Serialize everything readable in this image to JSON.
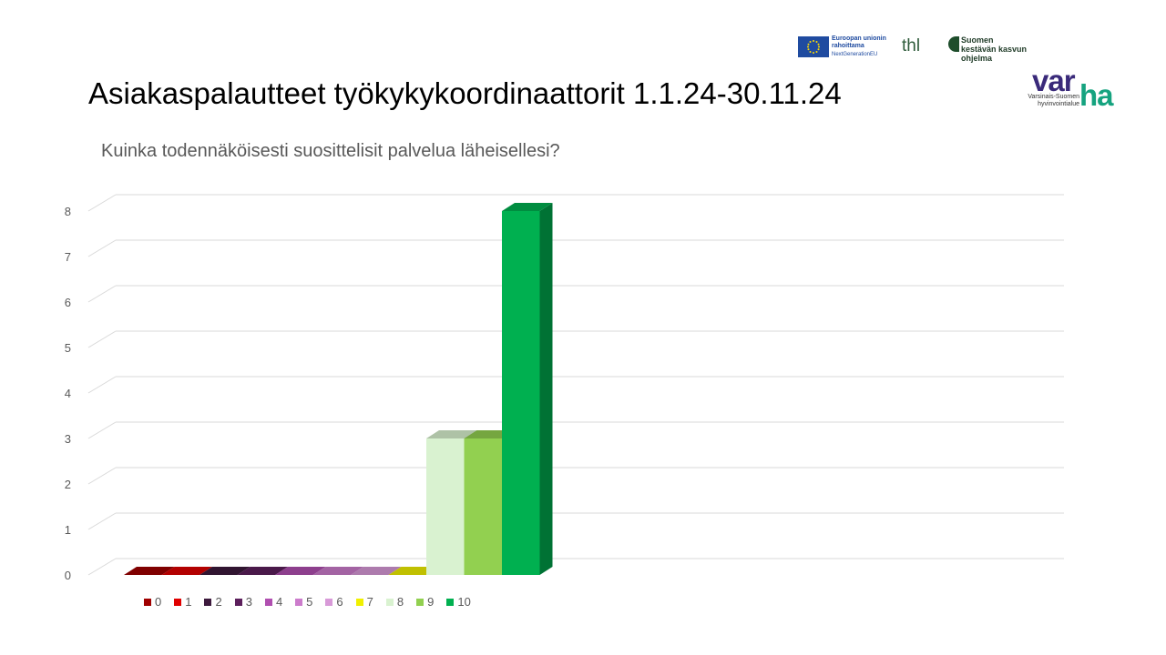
{
  "slide": {
    "title": "Asiakaspalautteet työkykykoordinaattorit 1.1.24-30.11.24"
  },
  "logos": {
    "eu_line1": "Euroopan unionin",
    "eu_line2": "rahoittama",
    "eu_line3": "NextGenerationEU",
    "thl": "thl",
    "skk_line1": "Suomen",
    "skk_line2": "kestävän kasvun",
    "skk_line3": "ohjelma",
    "varha_a": "var",
    "varha_b": "ha",
    "varha_sub1": "Varsinais-Suomen",
    "varha_sub2": "hyvinvointialue"
  },
  "chart_data": {
    "type": "bar",
    "title": "Kuinka todennäköisesti suosittelisit palvelua läheisellesi?",
    "categories": [
      "0",
      "1",
      "2",
      "3",
      "4",
      "5",
      "6",
      "7",
      "8",
      "9",
      "10"
    ],
    "values": [
      0,
      0,
      0,
      0,
      0,
      0,
      0,
      0,
      3,
      3,
      8
    ],
    "colors": [
      "#a00000",
      "#e00000",
      "#3d1a3d",
      "#5c1f5c",
      "#b04fb0",
      "#cc7ccc",
      "#d89ad8",
      "#f0f000",
      "#d9f2d0",
      "#92d050",
      "#00b050"
    ],
    "ylim": [
      0,
      8
    ],
    "yticks": [
      0,
      1,
      2,
      3,
      4,
      5,
      6,
      7,
      8
    ],
    "grid": true,
    "legend": "bottom",
    "three_d": true
  }
}
